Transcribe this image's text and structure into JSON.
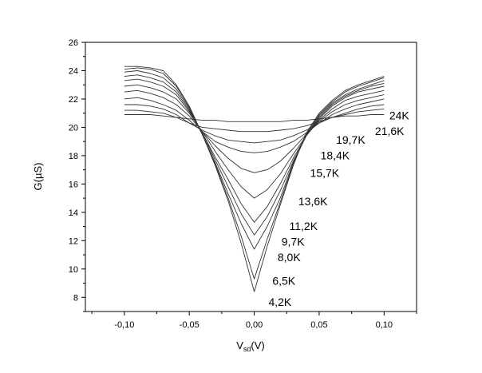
{
  "chart_data": {
    "type": "line",
    "title": "",
    "xlabel": "V",
    "xlabel_sub": "sd",
    "xlabel_unit": "(V)",
    "ylabel": "G(µS)",
    "xlim": [
      -0.13,
      0.125
    ],
    "ylim": [
      7,
      26
    ],
    "grid": false,
    "legend": "none",
    "x_ticks": [
      {
        "value": -0.1,
        "label": "-0,10"
      },
      {
        "value": -0.05,
        "label": "-0,05"
      },
      {
        "value": 0.0,
        "label": "0,00"
      },
      {
        "value": 0.05,
        "label": "0,05"
      },
      {
        "value": 0.1,
        "label": "0,10"
      }
    ],
    "y_ticks": [
      {
        "value": 8,
        "label": "8"
      },
      {
        "value": 10,
        "label": "10"
      },
      {
        "value": 12,
        "label": "12"
      },
      {
        "value": 14,
        "label": "14"
      },
      {
        "value": 16,
        "label": "16"
      },
      {
        "value": 18,
        "label": "18"
      },
      {
        "value": 20,
        "label": "20"
      },
      {
        "value": 22,
        "label": "22"
      },
      {
        "value": 24,
        "label": "24"
      },
      {
        "value": 26,
        "label": "26"
      }
    ],
    "x": [
      -0.1,
      -0.09,
      -0.08,
      -0.07,
      -0.06,
      -0.05,
      -0.04,
      -0.03,
      -0.02,
      -0.01,
      0.0,
      0.01,
      0.02,
      0.03,
      0.04,
      0.05,
      0.06,
      0.07,
      0.08,
      0.09,
      0.1
    ],
    "series": [
      {
        "name": "4,2K",
        "values": [
          24.3,
          24.3,
          24.2,
          24.0,
          23.0,
          21.5,
          19.5,
          17.3,
          14.8,
          11.8,
          8.4,
          11.6,
          14.5,
          17.3,
          19.6,
          21.0,
          21.9,
          22.6,
          23.0,
          23.3,
          23.6
        ]
      },
      {
        "name": "6,5K",
        "values": [
          24.1,
          24.2,
          24.1,
          23.8,
          22.9,
          21.4,
          19.5,
          17.4,
          15.0,
          12.3,
          9.3,
          12.1,
          14.7,
          17.4,
          19.5,
          20.9,
          21.8,
          22.5,
          22.9,
          23.2,
          23.5
        ]
      },
      {
        "name": "8,0K",
        "values": [
          23.9,
          24.0,
          23.8,
          23.5,
          22.7,
          21.3,
          19.5,
          17.5,
          15.3,
          13.2,
          11.4,
          13.0,
          15.0,
          17.5,
          19.4,
          20.8,
          21.7,
          22.3,
          22.7,
          23.0,
          23.3
        ]
      },
      {
        "name": "9,7K",
        "values": [
          23.6,
          23.7,
          23.5,
          23.2,
          22.5,
          21.2,
          19.6,
          17.7,
          15.8,
          13.9,
          12.4,
          13.7,
          15.5,
          17.6,
          19.4,
          20.7,
          21.6,
          22.2,
          22.6,
          22.9,
          23.1
        ]
      },
      {
        "name": "11,2K",
        "values": [
          23.3,
          23.4,
          23.2,
          22.9,
          22.3,
          21.1,
          19.6,
          17.9,
          16.3,
          14.6,
          13.3,
          14.4,
          16.0,
          17.8,
          19.4,
          20.6,
          21.5,
          22.1,
          22.5,
          22.7,
          22.9
        ]
      },
      {
        "name": "13,6K",
        "values": [
          22.9,
          23.0,
          22.8,
          22.5,
          22.0,
          21.0,
          19.7,
          18.3,
          17.0,
          15.8,
          15.0,
          15.6,
          16.7,
          18.1,
          19.4,
          20.5,
          21.3,
          21.9,
          22.2,
          22.4,
          22.6
        ]
      },
      {
        "name": "15,7K",
        "values": [
          22.5,
          22.6,
          22.4,
          22.1,
          21.6,
          20.8,
          19.7,
          18.7,
          17.8,
          17.1,
          16.8,
          17.0,
          17.6,
          18.5,
          19.5,
          20.4,
          21.1,
          21.6,
          21.9,
          22.1,
          22.3
        ]
      },
      {
        "name": "18,4K",
        "values": [
          22.0,
          22.1,
          21.9,
          21.6,
          21.2,
          20.5,
          19.7,
          19.0,
          18.6,
          18.3,
          18.2,
          18.3,
          18.6,
          19.0,
          19.6,
          20.3,
          20.9,
          21.3,
          21.6,
          21.8,
          22.0
        ]
      },
      {
        "name": "19,7K",
        "values": [
          21.6,
          21.6,
          21.5,
          21.3,
          20.9,
          20.3,
          19.8,
          19.4,
          19.1,
          19.0,
          18.9,
          19.0,
          19.1,
          19.4,
          19.8,
          20.3,
          20.7,
          21.0,
          21.3,
          21.5,
          21.6
        ]
      },
      {
        "name": "21,6K",
        "values": [
          21.2,
          21.2,
          21.1,
          21.0,
          20.7,
          20.3,
          20.0,
          19.9,
          19.8,
          19.7,
          19.7,
          19.7,
          19.8,
          19.9,
          20.1,
          20.4,
          20.7,
          20.9,
          21.1,
          21.2,
          21.3
        ]
      },
      {
        "name": "24K",
        "values": [
          20.9,
          20.9,
          20.9,
          20.8,
          20.7,
          20.6,
          20.5,
          20.5,
          20.4,
          20.4,
          20.4,
          20.4,
          20.4,
          20.5,
          20.5,
          20.6,
          20.7,
          20.8,
          20.8,
          20.9,
          20.9
        ]
      }
    ],
    "series_labels": [
      {
        "text": "24K",
        "at": [
          0.104,
          20.55
        ]
      },
      {
        "text": "21,6K",
        "at": [
          0.093,
          19.45
        ]
      },
      {
        "text": "19,7K",
        "at": [
          0.063,
          18.85
        ]
      },
      {
        "text": "18,4K",
        "at": [
          0.051,
          17.75
        ]
      },
      {
        "text": "15,7K",
        "at": [
          0.043,
          16.5
        ]
      },
      {
        "text": "13,6K",
        "at": [
          0.034,
          14.5
        ]
      },
      {
        "text": "11,2K",
        "at": [
          0.027,
          12.75
        ]
      },
      {
        "text": "9,7K",
        "at": [
          0.021,
          11.65
        ]
      },
      {
        "text": "8,0K",
        "at": [
          0.018,
          10.55
        ]
      },
      {
        "text": "6,5K",
        "at": [
          0.014,
          8.9
        ]
      },
      {
        "text": "4,2K",
        "at": [
          0.011,
          7.4
        ]
      }
    ]
  }
}
